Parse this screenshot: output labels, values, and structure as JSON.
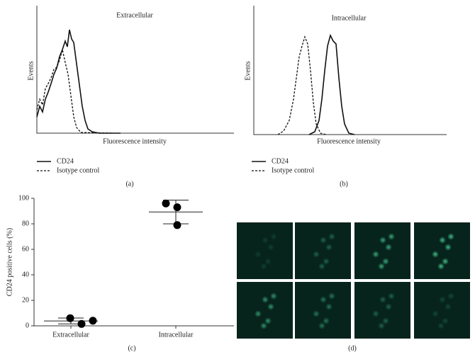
{
  "chart_data": [
    {
      "type": "histogram",
      "title": "Extracellular",
      "ylabel": "Events",
      "xlabel": "Fluorescence intensity",
      "label": "(a)",
      "series": [
        {
          "name": "CD24"
        },
        {
          "name": "Isotype control"
        }
      ]
    },
    {
      "type": "histogram",
      "title": "Intracellular",
      "ylabel": "Events",
      "xlabel": "Fluorescence intensity",
      "label": "(b)",
      "series": [
        {
          "name": "CD24"
        },
        {
          "name": "Isotype control"
        }
      ]
    },
    {
      "type": "dotplot",
      "ylabel": "CD24 positive cells (%)",
      "label": "(c)",
      "categories": [
        "Extracellular",
        "Intracellular"
      ],
      "values": [
        [
          6,
          1.5,
          4
        ],
        [
          96,
          93,
          79
        ]
      ],
      "means": [
        3.8,
        89.3
      ],
      "sd": [
        2.3,
        9.3
      ],
      "ylim": [
        0,
        100
      ],
      "yticks": [
        0,
        20,
        40,
        60,
        80,
        100
      ]
    }
  ],
  "images": {
    "label": "(d)"
  }
}
